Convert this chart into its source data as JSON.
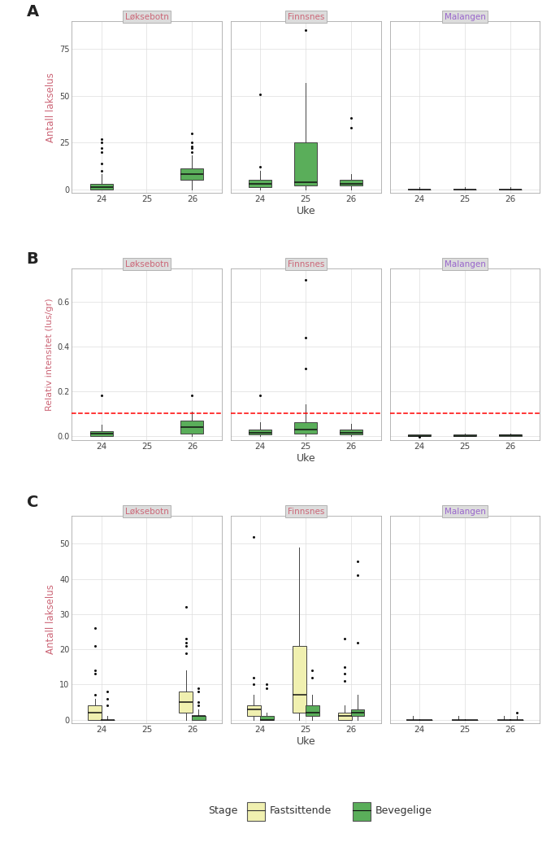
{
  "stations": [
    "Løksebotn",
    "Finnsnes",
    "Malangen"
  ],
  "weeks": [
    24,
    25,
    26
  ],
  "facet_title_color_loks": "#CC6677",
  "facet_title_color_finn": "#CC6677",
  "facet_title_color_mala": "#9966CC",
  "facet_strip_bg": "#DCDCDC",
  "plot_bg": "#FFFFFF",
  "grid_color": "#DDDDDD",
  "box_color_green": "#5AAE5A",
  "box_color_yellow": "#F0F0B0",
  "dashed_line_color": "#FF0000",
  "dashed_line_y": 0.1,
  "panel_A": {
    "ylabel": "Antall lakselus",
    "xlabel": "Uke",
    "ylim": [
      -2,
      90
    ],
    "yticks": [
      0,
      25,
      50,
      75
    ],
    "data": {
      "Løksebotn": {
        "24": {
          "q1": 0,
          "median": 1,
          "q3": 3,
          "whislo": 0,
          "whishi": 8,
          "outliers": [
            10,
            14,
            20,
            22,
            25,
            27
          ]
        },
        "25": {
          "q1": null,
          "median": null,
          "q3": null,
          "whislo": null,
          "whishi": null,
          "outliers": []
        },
        "26": {
          "q1": 5,
          "median": 8,
          "q3": 11,
          "whislo": 0,
          "whishi": 18,
          "outliers": [
            20,
            22,
            23,
            25,
            30
          ]
        }
      },
      "Finnsnes": {
        "24": {
          "q1": 1,
          "median": 3,
          "q3": 5,
          "whislo": 0,
          "whishi": 10,
          "outliers": [
            12,
            51
          ]
        },
        "25": {
          "q1": 2,
          "median": 4,
          "q3": 25,
          "whislo": 0,
          "whishi": 57,
          "outliers": [
            85
          ]
        },
        "26": {
          "q1": 2,
          "median": 3,
          "q3": 5,
          "whislo": 0,
          "whishi": 8,
          "outliers": [
            33,
            38
          ]
        }
      },
      "Malangen": {
        "24": {
          "q1": 0,
          "median": 0,
          "q3": 0,
          "whislo": 0,
          "whishi": 1,
          "outliers": []
        },
        "25": {
          "q1": 0,
          "median": 0,
          "q3": 0,
          "whislo": 0,
          "whishi": 1,
          "outliers": []
        },
        "26": {
          "q1": 0,
          "median": 0,
          "q3": 0,
          "whislo": 0,
          "whishi": 1,
          "outliers": []
        }
      }
    }
  },
  "panel_B": {
    "ylabel": "Relativ intensitet (lus/gr)",
    "xlabel": "Uke",
    "ylim": [
      -0.02,
      0.75
    ],
    "yticks": [
      0.0,
      0.2,
      0.4,
      0.6
    ],
    "data": {
      "Løksebotn": {
        "24": {
          "q1": 0,
          "median": 0.01,
          "q3": 0.02,
          "whislo": 0,
          "whishi": 0.05,
          "outliers": [
            0.18
          ]
        },
        "25": {
          "q1": null,
          "median": null,
          "q3": null,
          "whislo": null,
          "whishi": null,
          "outliers": []
        },
        "26": {
          "q1": 0.01,
          "median": 0.04,
          "q3": 0.07,
          "whislo": 0,
          "whishi": 0.11,
          "outliers": [
            0.18
          ]
        }
      },
      "Finnsnes": {
        "24": {
          "q1": 0.005,
          "median": 0.015,
          "q3": 0.03,
          "whislo": 0,
          "whishi": 0.06,
          "outliers": [
            0.18
          ]
        },
        "25": {
          "q1": 0.01,
          "median": 0.03,
          "q3": 0.06,
          "whislo": 0,
          "whishi": 0.14,
          "outliers": [
            0.3,
            0.44,
            0.7
          ]
        },
        "26": {
          "q1": 0.005,
          "median": 0.015,
          "q3": 0.03,
          "whislo": 0,
          "whishi": 0.055,
          "outliers": []
        }
      },
      "Malangen": {
        "24": {
          "q1": 0,
          "median": 0,
          "q3": 0.005,
          "whislo": 0,
          "whishi": 0.005,
          "outliers": [
            -0.005
          ]
        },
        "25": {
          "q1": 0,
          "median": 0,
          "q3": 0.005,
          "whislo": 0,
          "whishi": 0.01,
          "outliers": []
        },
        "26": {
          "q1": 0,
          "median": 0.003,
          "q3": 0.007,
          "whislo": 0,
          "whishi": 0.012,
          "outliers": []
        }
      }
    }
  },
  "panel_C": {
    "ylabel": "Antall lakselus",
    "xlabel": "Uke",
    "ylim": [
      -1,
      58
    ],
    "yticks": [
      0,
      10,
      20,
      30,
      40,
      50
    ],
    "data_fastsittende": {
      "Løksebotn": {
        "24": {
          "q1": 0,
          "median": 2,
          "q3": 4,
          "whislo": 0,
          "whishi": 6,
          "outliers": [
            7,
            13,
            14,
            21,
            26
          ]
        },
        "25": {
          "q1": null,
          "median": null,
          "q3": null,
          "whislo": null,
          "whishi": null,
          "outliers": []
        },
        "26": {
          "q1": 2,
          "median": 5,
          "q3": 8,
          "whislo": 0,
          "whishi": 14,
          "outliers": [
            19,
            21,
            22,
            23,
            32
          ]
        }
      },
      "Finnsnes": {
        "24": {
          "q1": 1,
          "median": 3,
          "q3": 4,
          "whislo": 0,
          "whishi": 7,
          "outliers": [
            10,
            12,
            52
          ]
        },
        "25": {
          "q1": 2,
          "median": 7,
          "q3": 21,
          "whislo": 0,
          "whishi": 49,
          "outliers": []
        },
        "26": {
          "q1": 0,
          "median": 1,
          "q3": 2,
          "whislo": 0,
          "whishi": 4,
          "outliers": [
            11,
            13,
            15,
            23
          ]
        }
      },
      "Malangen": {
        "24": {
          "q1": 0,
          "median": 0,
          "q3": 0,
          "whislo": 0,
          "whishi": 1,
          "outliers": []
        },
        "25": {
          "q1": 0,
          "median": 0,
          "q3": 0,
          "whislo": 0,
          "whishi": 1,
          "outliers": []
        },
        "26": {
          "q1": 0,
          "median": 0,
          "q3": 0,
          "whislo": 0,
          "whishi": 1,
          "outliers": []
        }
      }
    },
    "data_bevegelige": {
      "Løksebotn": {
        "24": {
          "q1": 0,
          "median": 0,
          "q3": 0,
          "whislo": 0,
          "whishi": 1,
          "outliers": [
            4,
            6,
            8
          ]
        },
        "25": {
          "q1": null,
          "median": null,
          "q3": null,
          "whislo": null,
          "whishi": null,
          "outliers": []
        },
        "26": {
          "q1": 0,
          "median": 1,
          "q3": 1,
          "whislo": 0,
          "whishi": 3,
          "outliers": [
            4,
            5,
            8,
            9
          ]
        }
      },
      "Finnsnes": {
        "24": {
          "q1": 0,
          "median": 0,
          "q3": 1,
          "whislo": 0,
          "whishi": 2,
          "outliers": [
            9,
            10
          ]
        },
        "25": {
          "q1": 1,
          "median": 2,
          "q3": 4,
          "whislo": 0,
          "whishi": 7,
          "outliers": [
            12,
            14
          ]
        },
        "26": {
          "q1": 1,
          "median": 2,
          "q3": 3,
          "whislo": 0,
          "whishi": 7,
          "outliers": [
            22,
            41,
            45
          ]
        }
      },
      "Malangen": {
        "24": {
          "q1": 0,
          "median": 0,
          "q3": 0,
          "whislo": 0,
          "whishi": 0,
          "outliers": []
        },
        "25": {
          "q1": 0,
          "median": 0,
          "q3": 0,
          "whislo": 0,
          "whishi": 0,
          "outliers": []
        },
        "26": {
          "q1": 0,
          "median": 0,
          "q3": 0,
          "whislo": 0,
          "whishi": 1,
          "outliers": [
            2
          ]
        }
      }
    }
  },
  "legend": {
    "stage_label": "Stage",
    "fastsittende_label": "Fastsittende",
    "bevegelige_label": "Bevegelige",
    "fastsittende_color": "#F0F0B0",
    "bevegelige_color": "#5AAE5A"
  }
}
